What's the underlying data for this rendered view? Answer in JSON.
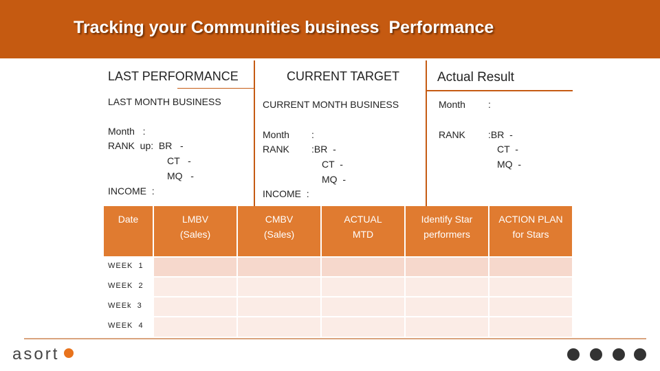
{
  "header": {
    "title": "Tracking your Communities business  Performance"
  },
  "sections": [
    {
      "heading": "LAST PERFORMANCE",
      "subheading": "LAST MONTH BUSINESS",
      "lines": [
        "Month   :",
        "RANK  up:  BR   -",
        "CT   -",
        "MQ   -",
        "INCOME  :"
      ]
    },
    {
      "heading": "CURRENT TARGET",
      "subheading": "CURRENT MONTH BUSINESS",
      "lines": [
        "Month",
        ":",
        "RANK",
        ":BR  -",
        "CT  -",
        "MQ  -",
        "INCOME  :"
      ]
    },
    {
      "heading": "Actual Result",
      "subheading": "Month",
      "lines": [
        ":",
        "RANK",
        ":BR  -",
        "CT  -",
        "MQ  -"
      ]
    }
  ],
  "table": {
    "columns": [
      "Date",
      "LMBV\n(Sales)",
      "CMBV\n(Sales)",
      "ACTUAL\nMTD",
      "Identify Star\nperformers",
      "ACTION PLAN\nfor Stars"
    ],
    "rows": [
      [
        "WEEK  1"
      ],
      [
        "WEEK  2"
      ],
      [
        "WEEk  3"
      ],
      [
        "WEEK  4"
      ]
    ]
  },
  "footer": {
    "logo": "asort"
  }
}
